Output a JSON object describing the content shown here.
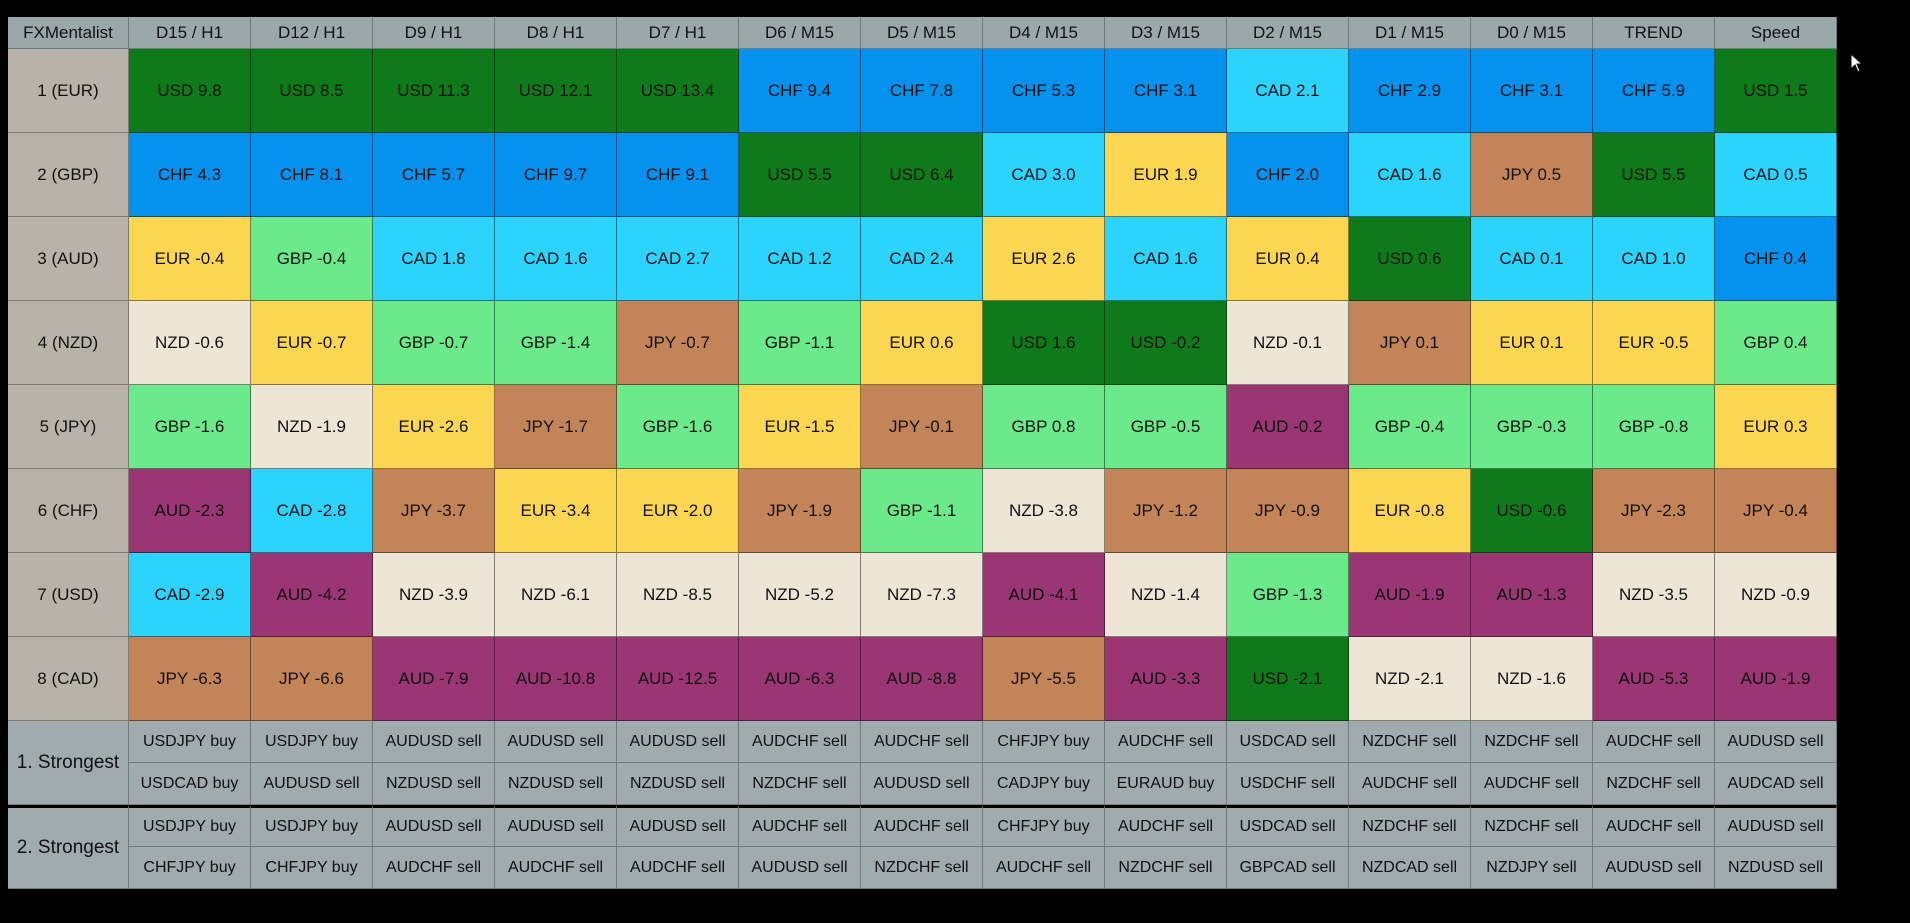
{
  "table": {
    "corner_label": "FXMentalist",
    "columns": [
      "D15 / H1",
      "D12 / H1",
      "D9 / H1",
      "D8 / H1",
      "D7 / H1",
      "D6 / M15",
      "D5 / M15",
      "D4 / M15",
      "D3 / M15",
      "D2 / M15",
      "D1 / M15",
      "D0 / M15",
      "TREND",
      "Speed"
    ],
    "currency_colors": {
      "USD": "#0e7a19",
      "CHF": "#0492ee",
      "CAD": "#2cd3fd",
      "EUR": "#fdd651",
      "GBP": "#6aea8a",
      "NZD": "#ede5d5",
      "JPY": "#c38457",
      "AUD": "#9a3674"
    },
    "rows": [
      {
        "label": "1 (EUR)",
        "cells": [
          {
            "c": "USD",
            "t": "USD 9.8"
          },
          {
            "c": "USD",
            "t": "USD 8.5"
          },
          {
            "c": "USD",
            "t": "USD 11.3"
          },
          {
            "c": "USD",
            "t": "USD 12.1"
          },
          {
            "c": "USD",
            "t": "USD 13.4"
          },
          {
            "c": "CHF",
            "t": "CHF 9.4"
          },
          {
            "c": "CHF",
            "t": "CHF 7.8"
          },
          {
            "c": "CHF",
            "t": "CHF 5.3"
          },
          {
            "c": "CHF",
            "t": "CHF 3.1"
          },
          {
            "c": "CAD",
            "t": "CAD 2.1"
          },
          {
            "c": "CHF",
            "t": "CHF 2.9"
          },
          {
            "c": "CHF",
            "t": "CHF 3.1"
          },
          {
            "c": "CHF",
            "t": "CHF 5.9"
          },
          {
            "c": "USD",
            "t": "USD 1.5"
          }
        ]
      },
      {
        "label": "2 (GBP)",
        "cells": [
          {
            "c": "CHF",
            "t": "CHF 4.3"
          },
          {
            "c": "CHF",
            "t": "CHF 8.1"
          },
          {
            "c": "CHF",
            "t": "CHF 5.7"
          },
          {
            "c": "CHF",
            "t": "CHF 9.7"
          },
          {
            "c": "CHF",
            "t": "CHF 9.1"
          },
          {
            "c": "USD",
            "t": "USD 5.5"
          },
          {
            "c": "USD",
            "t": "USD 6.4"
          },
          {
            "c": "CAD",
            "t": "CAD 3.0"
          },
          {
            "c": "EUR",
            "t": "EUR 1.9"
          },
          {
            "c": "CHF",
            "t": "CHF 2.0"
          },
          {
            "c": "CAD",
            "t": "CAD 1.6"
          },
          {
            "c": "JPY",
            "t": "JPY 0.5"
          },
          {
            "c": "USD",
            "t": "USD 5.5"
          },
          {
            "c": "CAD",
            "t": "CAD 0.5"
          }
        ]
      },
      {
        "label": "3 (AUD)",
        "cells": [
          {
            "c": "EUR",
            "t": "EUR -0.4"
          },
          {
            "c": "GBP",
            "t": "GBP -0.4"
          },
          {
            "c": "CAD",
            "t": "CAD 1.8"
          },
          {
            "c": "CAD",
            "t": "CAD 1.6"
          },
          {
            "c": "CAD",
            "t": "CAD 2.7"
          },
          {
            "c": "CAD",
            "t": "CAD 1.2"
          },
          {
            "c": "CAD",
            "t": "CAD 2.4"
          },
          {
            "c": "EUR",
            "t": "EUR 2.6"
          },
          {
            "c": "CAD",
            "t": "CAD 1.6"
          },
          {
            "c": "EUR",
            "t": "EUR 0.4"
          },
          {
            "c": "USD",
            "t": "USD 0.6"
          },
          {
            "c": "CAD",
            "t": "CAD 0.1"
          },
          {
            "c": "CAD",
            "t": "CAD 1.0"
          },
          {
            "c": "CHF",
            "t": "CHF 0.4"
          }
        ]
      },
      {
        "label": "4 (NZD)",
        "cells": [
          {
            "c": "NZD",
            "t": "NZD -0.6"
          },
          {
            "c": "EUR",
            "t": "EUR -0.7"
          },
          {
            "c": "GBP",
            "t": "GBP -0.7"
          },
          {
            "c": "GBP",
            "t": "GBP -1.4"
          },
          {
            "c": "JPY",
            "t": "JPY -0.7"
          },
          {
            "c": "GBP",
            "t": "GBP -1.1"
          },
          {
            "c": "EUR",
            "t": "EUR 0.6"
          },
          {
            "c": "USD",
            "t": "USD 1.6"
          },
          {
            "c": "USD",
            "t": "USD -0.2"
          },
          {
            "c": "NZD",
            "t": "NZD -0.1"
          },
          {
            "c": "JPY",
            "t": "JPY 0.1"
          },
          {
            "c": "EUR",
            "t": "EUR 0.1"
          },
          {
            "c": "EUR",
            "t": "EUR -0.5"
          },
          {
            "c": "GBP",
            "t": "GBP 0.4"
          }
        ]
      },
      {
        "label": "5 (JPY)",
        "cells": [
          {
            "c": "GBP",
            "t": "GBP -1.6"
          },
          {
            "c": "NZD",
            "t": "NZD -1.9"
          },
          {
            "c": "EUR",
            "t": "EUR -2.6"
          },
          {
            "c": "JPY",
            "t": "JPY -1.7"
          },
          {
            "c": "GBP",
            "t": "GBP -1.6"
          },
          {
            "c": "EUR",
            "t": "EUR -1.5"
          },
          {
            "c": "JPY",
            "t": "JPY -0.1"
          },
          {
            "c": "GBP",
            "t": "GBP 0.8"
          },
          {
            "c": "GBP",
            "t": "GBP -0.5"
          },
          {
            "c": "AUD",
            "t": "AUD -0.2"
          },
          {
            "c": "GBP",
            "t": "GBP -0.4"
          },
          {
            "c": "GBP",
            "t": "GBP -0.3"
          },
          {
            "c": "GBP",
            "t": "GBP -0.8"
          },
          {
            "c": "EUR",
            "t": "EUR 0.3"
          }
        ]
      },
      {
        "label": "6 (CHF)",
        "cells": [
          {
            "c": "AUD",
            "t": "AUD -2.3"
          },
          {
            "c": "CAD",
            "t": "CAD -2.8"
          },
          {
            "c": "JPY",
            "t": "JPY -3.7"
          },
          {
            "c": "EUR",
            "t": "EUR -3.4"
          },
          {
            "c": "EUR",
            "t": "EUR -2.0"
          },
          {
            "c": "JPY",
            "t": "JPY -1.9"
          },
          {
            "c": "GBP",
            "t": "GBP -1.1"
          },
          {
            "c": "NZD",
            "t": "NZD -3.8"
          },
          {
            "c": "JPY",
            "t": "JPY -1.2"
          },
          {
            "c": "JPY",
            "t": "JPY -0.9"
          },
          {
            "c": "EUR",
            "t": "EUR -0.8"
          },
          {
            "c": "USD",
            "t": "USD -0.6"
          },
          {
            "c": "JPY",
            "t": "JPY -2.3"
          },
          {
            "c": "JPY",
            "t": "JPY -0.4"
          }
        ]
      },
      {
        "label": "7 (USD)",
        "cells": [
          {
            "c": "CAD",
            "t": "CAD -2.9"
          },
          {
            "c": "AUD",
            "t": "AUD -4.2"
          },
          {
            "c": "NZD",
            "t": "NZD -3.9"
          },
          {
            "c": "NZD",
            "t": "NZD -6.1"
          },
          {
            "c": "NZD",
            "t": "NZD -8.5"
          },
          {
            "c": "NZD",
            "t": "NZD -5.2"
          },
          {
            "c": "NZD",
            "t": "NZD -7.3"
          },
          {
            "c": "AUD",
            "t": "AUD -4.1"
          },
          {
            "c": "NZD",
            "t": "NZD -1.4"
          },
          {
            "c": "GBP",
            "t": "GBP -1.3"
          },
          {
            "c": "AUD",
            "t": "AUD -1.9"
          },
          {
            "c": "AUD",
            "t": "AUD -1.3"
          },
          {
            "c": "NZD",
            "t": "NZD -3.5"
          },
          {
            "c": "NZD",
            "t": "NZD -0.9"
          }
        ]
      },
      {
        "label": "8 (CAD)",
        "cells": [
          {
            "c": "JPY",
            "t": "JPY -6.3"
          },
          {
            "c": "JPY",
            "t": "JPY -6.6"
          },
          {
            "c": "AUD",
            "t": "AUD -7.9"
          },
          {
            "c": "AUD",
            "t": "AUD -10.8"
          },
          {
            "c": "AUD",
            "t": "AUD -12.5"
          },
          {
            "c": "AUD",
            "t": "AUD -6.3"
          },
          {
            "c": "AUD",
            "t": "AUD -8.8"
          },
          {
            "c": "JPY",
            "t": "JPY -5.5"
          },
          {
            "c": "AUD",
            "t": "AUD -3.3"
          },
          {
            "c": "USD",
            "t": "USD -2.1"
          },
          {
            "c": "NZD",
            "t": "NZD -2.1"
          },
          {
            "c": "NZD",
            "t": "NZD -1.6"
          },
          {
            "c": "AUD",
            "t": "AUD -5.3"
          },
          {
            "c": "AUD",
            "t": "AUD -1.9"
          }
        ]
      }
    ]
  },
  "signals": [
    {
      "label": "1. Strongest",
      "lines": [
        [
          "USDJPY buy",
          "USDJPY buy",
          "AUDUSD sell",
          "AUDUSD sell",
          "AUDUSD sell",
          "AUDCHF sell",
          "AUDCHF sell",
          "CHFJPY buy",
          "AUDCHF sell",
          "USDCAD sell",
          "NZDCHF sell",
          "NZDCHF sell",
          "AUDCHF sell",
          "AUDUSD sell"
        ],
        [
          "USDCAD buy",
          "AUDUSD sell",
          "NZDUSD sell",
          "NZDUSD sell",
          "NZDUSD sell",
          "NZDCHF sell",
          "AUDUSD sell",
          "CADJPY buy",
          "EURAUD buy",
          "USDCHF sell",
          "AUDCHF sell",
          "AUDCHF sell",
          "NZDCHF sell",
          "AUDCAD sell"
        ]
      ]
    },
    {
      "label": "2. Strongest",
      "lines": [
        [
          "USDJPY buy",
          "USDJPY buy",
          "AUDUSD sell",
          "AUDUSD sell",
          "AUDUSD sell",
          "AUDCHF sell",
          "AUDCHF sell",
          "CHFJPY buy",
          "AUDCHF sell",
          "USDCAD sell",
          "NZDCHF sell",
          "NZDCHF sell",
          "AUDCHF sell",
          "AUDUSD sell"
        ],
        [
          "CHFJPY buy",
          "CHFJPY buy",
          "AUDCHF sell",
          "AUDCHF sell",
          "AUDCHF sell",
          "AUDUSD sell",
          "NZDCHF sell",
          "AUDCHF sell",
          "NZDCHF sell",
          "GBPCAD sell",
          "NZDCAD sell",
          "NZDJPY sell",
          "AUDUSD sell",
          "NZDUSD sell"
        ]
      ]
    }
  ],
  "cursor": {
    "icon": "mouse-pointer-icon"
  }
}
